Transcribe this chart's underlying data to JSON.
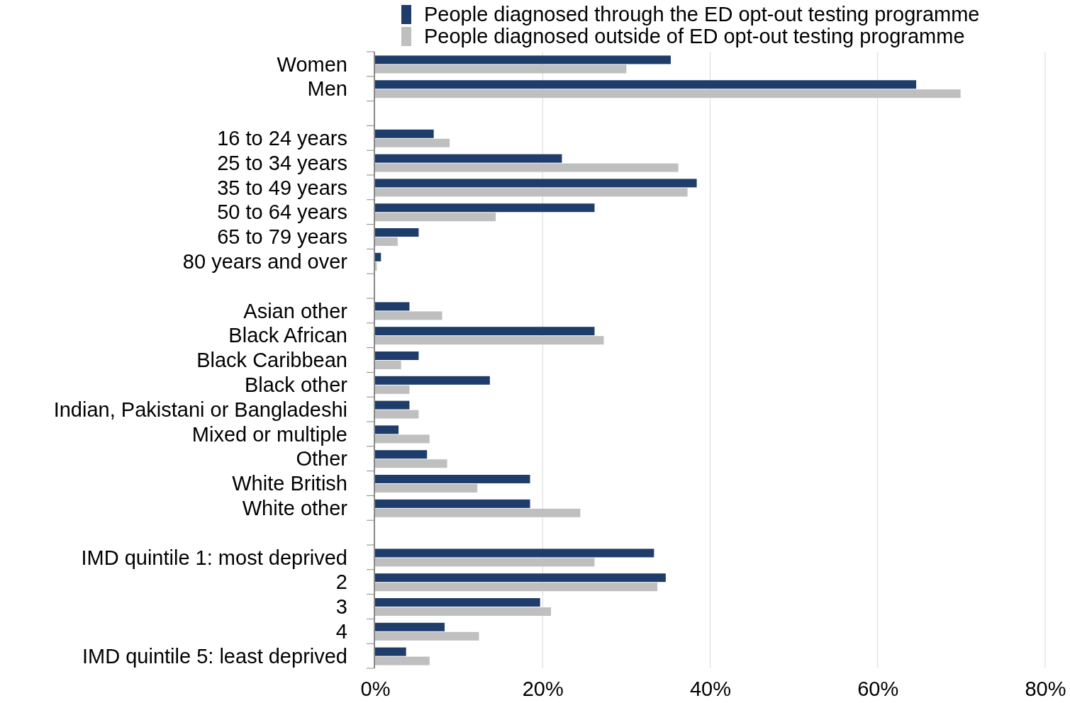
{
  "chart_data": {
    "type": "bar",
    "orientation": "horizontal",
    "categories": [
      "Women",
      "Men",
      null,
      "16 to 24 years",
      "25 to 34 years",
      "35 to 49 years",
      "50 to 64 years",
      "65 to 79 years",
      "80 years and over",
      null,
      "Asian other",
      "Black African",
      "Black Caribbean",
      "Black other",
      "Indian, Pakistani or Bangladeshi",
      "Mixed or multiple",
      "Other",
      "White British",
      "White other",
      null,
      "IMD quintile 1: most deprived",
      "2",
      "3",
      "4",
      "IMD quintile 5: least deprived"
    ],
    "series": [
      {
        "name": "People diagnosed through the ED opt-out testing programme",
        "color": "#1f3d6b",
        "values": [
          35.3,
          64.6,
          null,
          7.0,
          22.3,
          38.4,
          26.2,
          5.2,
          0.7,
          null,
          4.1,
          26.2,
          5.2,
          13.7,
          4.1,
          2.8,
          6.2,
          18.5,
          18.5,
          null,
          33.3,
          34.7,
          19.7,
          8.3,
          3.7
        ]
      },
      {
        "name": "People diagnosed outside of ED opt-out testing programme",
        "color": "#bfbfbf",
        "values": [
          30.0,
          69.9,
          null,
          8.9,
          36.2,
          37.3,
          14.4,
          2.7,
          0.2,
          null,
          8.0,
          27.3,
          3.1,
          4.1,
          5.2,
          6.5,
          8.6,
          12.2,
          24.5,
          null,
          26.2,
          33.7,
          21.0,
          12.4,
          6.5
        ]
      }
    ],
    "xlim": [
      0,
      80
    ],
    "xticks": [
      {
        "value": 0,
        "label": "0%"
      },
      {
        "value": 20,
        "label": "20%"
      },
      {
        "value": 40,
        "label": "40%"
      },
      {
        "value": 60,
        "label": "60%"
      },
      {
        "value": 80,
        "label": "80%"
      }
    ],
    "grid": "x",
    "legend": "top right"
  }
}
